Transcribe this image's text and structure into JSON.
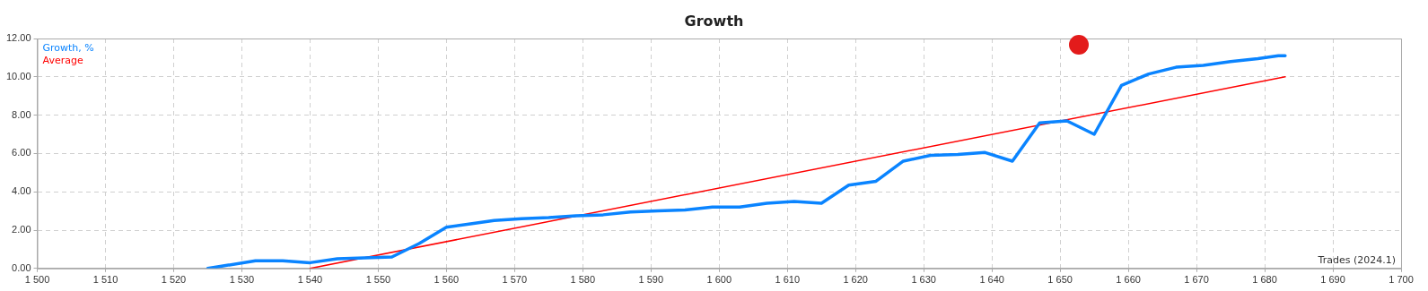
{
  "chart_data": {
    "type": "line",
    "title": "Growth",
    "xlabel": "Trades (2024.1)",
    "xlim": [
      1500,
      1700
    ],
    "xticks": [
      {
        "value": 1500,
        "label": "1 500"
      },
      {
        "value": 1510,
        "label": "1 510"
      },
      {
        "value": 1520,
        "label": "1 520"
      },
      {
        "value": 1530,
        "label": "1 530"
      },
      {
        "value": 1540,
        "label": "1 540"
      },
      {
        "value": 1550,
        "label": "1 550"
      },
      {
        "value": 1560,
        "label": "1 560"
      },
      {
        "value": 1570,
        "label": "1 570"
      },
      {
        "value": 1580,
        "label": "1 580"
      },
      {
        "value": 1590,
        "label": "1 590"
      },
      {
        "value": 1600,
        "label": "1 600"
      },
      {
        "value": 1610,
        "label": "1 610"
      },
      {
        "value": 1620,
        "label": "1 620"
      },
      {
        "value": 1630,
        "label": "1 630"
      },
      {
        "value": 1640,
        "label": "1 640"
      },
      {
        "value": 1650,
        "label": "1 650"
      },
      {
        "value": 1660,
        "label": "1 660"
      },
      {
        "value": 1670,
        "label": "1 670"
      },
      {
        "value": 1680,
        "label": "1 680"
      },
      {
        "value": 1690,
        "label": "1 690"
      },
      {
        "value": 1700,
        "label": "1 700"
      }
    ],
    "ylim": [
      0,
      12
    ],
    "yticks": [
      {
        "value": 0,
        "label": "0.00"
      },
      {
        "value": 2,
        "label": "2.00"
      },
      {
        "value": 4,
        "label": "4.00"
      },
      {
        "value": 6,
        "label": "6.00"
      },
      {
        "value": 8,
        "label": "8.00"
      },
      {
        "value": 10,
        "label": "10.00"
      },
      {
        "value": 12,
        "label": "12.00"
      }
    ],
    "grid": true,
    "legend": "top left",
    "marker": "none",
    "line_style": "solid",
    "series": [
      {
        "name": "Growth, %",
        "color": "#0a84ff",
        "x": [
          1525,
          1532,
          1536,
          1540,
          1544,
          1548,
          1552,
          1556,
          1560,
          1564,
          1567,
          1571,
          1575,
          1579,
          1583,
          1587,
          1591,
          1595,
          1599,
          1603,
          1607,
          1611,
          1615,
          1619,
          1623,
          1627,
          1631,
          1635,
          1639,
          1643,
          1647,
          1651,
          1655,
          1659,
          1663,
          1667,
          1671,
          1675,
          1679,
          1682,
          1683
        ],
        "values": [
          0,
          0.4,
          0.4,
          0.3,
          0.5,
          0.55,
          0.6,
          1.3,
          2.15,
          2.35,
          2.5,
          2.6,
          2.65,
          2.75,
          2.8,
          2.95,
          3.0,
          3.05,
          3.2,
          3.2,
          3.4,
          3.5,
          3.4,
          4.35,
          4.55,
          5.6,
          5.9,
          5.95,
          6.05,
          5.6,
          7.6,
          7.7,
          7.0,
          9.55,
          10.15,
          10.5,
          10.6,
          10.8,
          10.95,
          11.1,
          11.1
        ]
      },
      {
        "name": "Average",
        "color": "#ff0000",
        "x": [
          1540,
          1683
        ],
        "values": [
          0,
          10.0
        ]
      }
    ]
  }
}
